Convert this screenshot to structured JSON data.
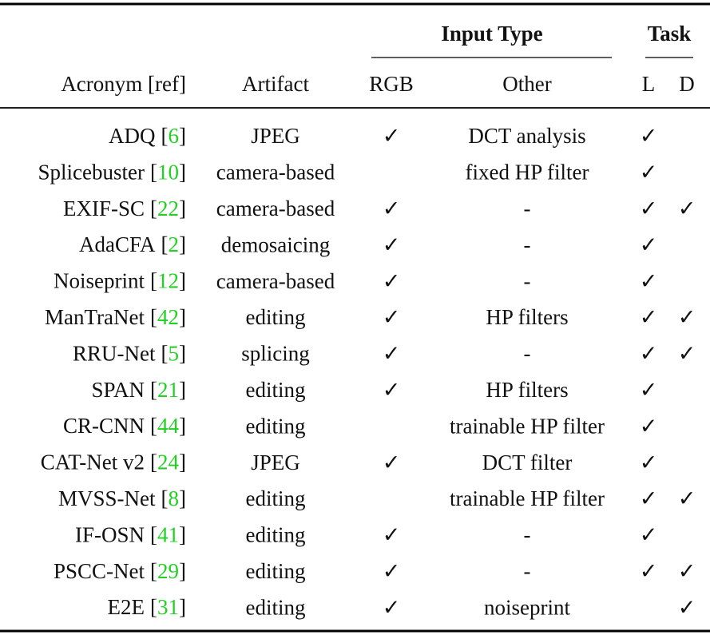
{
  "header": {
    "groups": [
      "Input Type",
      "Task"
    ],
    "columns": [
      "Acronym [ref]",
      "Artifact",
      "RGB",
      "Other",
      "L",
      "D"
    ]
  },
  "ref_brackets": [
    "[",
    "]"
  ],
  "rows": [
    {
      "name": "ADQ",
      "ref": "6",
      "artifact": "JPEG",
      "rgb": "✓",
      "other": "DCT analysis",
      "l": "✓",
      "d": null
    },
    {
      "name": "Splicebuster",
      "ref": "10",
      "artifact": "camera-based",
      "rgb": null,
      "other": "fixed HP filter",
      "l": "✓",
      "d": null
    },
    {
      "name": "EXIF-SC",
      "ref": "22",
      "artifact": "camera-based",
      "rgb": "✓",
      "other": "-",
      "l": "✓",
      "d": "✓"
    },
    {
      "name": "AdaCFA",
      "ref": "2",
      "artifact": "demosaicing",
      "rgb": "✓",
      "other": "-",
      "l": "✓",
      "d": null
    },
    {
      "name": "Noiseprint",
      "ref": "12",
      "artifact": "camera-based",
      "rgb": "✓",
      "other": "-",
      "l": "✓",
      "d": null
    },
    {
      "name": "ManTraNet",
      "ref": "42",
      "artifact": "editing",
      "rgb": "✓",
      "other": "HP filters",
      "l": "✓",
      "d": "✓"
    },
    {
      "name": "RRU-Net",
      "ref": "5",
      "artifact": "splicing",
      "rgb": "✓",
      "other": "-",
      "l": "✓",
      "d": "✓"
    },
    {
      "name": "SPAN",
      "ref": "21",
      "artifact": "editing",
      "rgb": "✓",
      "other": "HP filters",
      "l": "✓",
      "d": null
    },
    {
      "name": "CR-CNN",
      "ref": "44",
      "artifact": "editing",
      "rgb": null,
      "other": "trainable HP filter",
      "l": "✓",
      "d": null
    },
    {
      "name": "CAT-Net v2",
      "ref": "24",
      "artifact": "JPEG",
      "rgb": "✓",
      "other": "DCT filter",
      "l": "✓",
      "d": null
    },
    {
      "name": "MVSS-Net",
      "ref": "8",
      "artifact": "editing",
      "rgb": null,
      "other": "trainable HP filter",
      "l": "✓",
      "d": "✓"
    },
    {
      "name": "IF-OSN",
      "ref": "41",
      "artifact": "editing",
      "rgb": "✓",
      "other": "-",
      "l": "✓",
      "d": null
    },
    {
      "name": "PSCC-Net",
      "ref": "29",
      "artifact": "editing",
      "rgb": "✓",
      "other": "-",
      "l": "✓",
      "d": "✓"
    },
    {
      "name": "E2E",
      "ref": "31",
      "artifact": "editing",
      "rgb": "✓",
      "other": "noiseprint",
      "l": null,
      "d": "✓"
    }
  ]
}
